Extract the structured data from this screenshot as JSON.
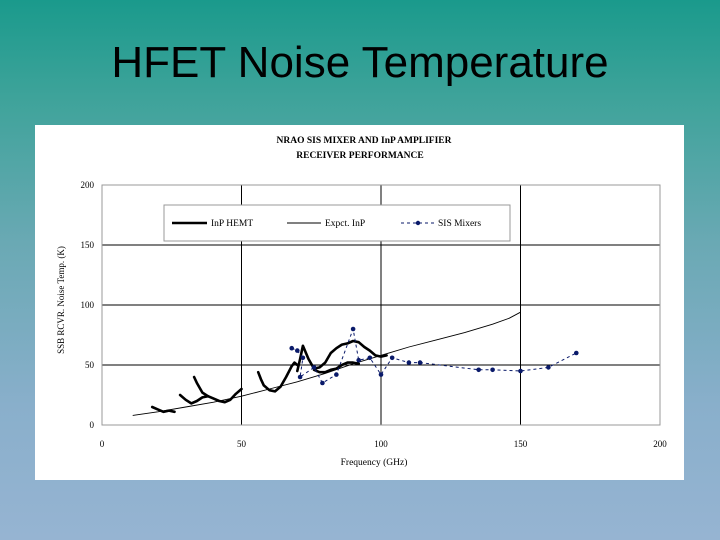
{
  "slide": {
    "title": "HFET Noise Temperature"
  },
  "chart_data": {
    "type": "line",
    "title": "NRAO SIS MIXER AND InP AMPLIFIER",
    "subtitle": "RECEIVER  PERFORMANCE",
    "xlabel": "Frequency (GHz)",
    "ylabel": "SSB RCVR. Noise Temp. (K)",
    "xlim": [
      0,
      200
    ],
    "ylim": [
      0,
      200
    ],
    "xticks": [
      "0",
      "50",
      "100",
      "150",
      "200"
    ],
    "yticks": [
      "0",
      "50",
      "100",
      "150",
      "200"
    ],
    "grid": true,
    "legend_position": "top",
    "series": [
      {
        "name": "InP HEMT",
        "style": "thick-solid",
        "color": "#000000",
        "segments": [
          [
            [
              18,
              15
            ],
            [
              20,
              13
            ],
            [
              22,
              11
            ],
            [
              24,
              12
            ],
            [
              26,
              11
            ]
          ],
          [
            [
              28,
              25
            ],
            [
              30,
              21
            ],
            [
              32,
              18
            ],
            [
              34,
              20
            ],
            [
              36,
              23
            ],
            [
              38,
              24
            ],
            [
              40,
              22
            ],
            [
              42,
              20
            ],
            [
              44,
              19
            ],
            [
              46,
              21
            ],
            [
              48,
              26
            ],
            [
              50,
              30
            ]
          ],
          [
            [
              33,
              40
            ],
            [
              34,
              35
            ],
            [
              36,
              27
            ],
            [
              38,
              24
            ]
          ],
          [
            [
              56,
              44
            ],
            [
              57,
              38
            ],
            [
              58,
              33
            ],
            [
              60,
              29
            ],
            [
              62,
              28
            ],
            [
              64,
              32
            ],
            [
              66,
              40
            ],
            [
              68,
              49
            ],
            [
              69,
              52
            ],
            [
              70,
              50
            ]
          ],
          [
            [
              70,
              45
            ],
            [
              71,
              55
            ],
            [
              72,
              66
            ],
            [
              74,
              55
            ],
            [
              76,
              47
            ],
            [
              78,
              48
            ],
            [
              80,
              52
            ],
            [
              82,
              60
            ],
            [
              84,
              64
            ],
            [
              86,
              67
            ],
            [
              88,
              68
            ],
            [
              90,
              70
            ],
            [
              92,
              69
            ],
            [
              94,
              65
            ],
            [
              96,
              62
            ],
            [
              98,
              58
            ],
            [
              100,
              57
            ],
            [
              102,
              58
            ]
          ],
          [
            [
              76,
              46
            ],
            [
              78,
              44
            ],
            [
              80,
              44
            ],
            [
              82,
              46
            ],
            [
              84,
              47
            ],
            [
              86,
              50
            ],
            [
              88,
              52
            ],
            [
              90,
              52
            ],
            [
              92,
              51
            ]
          ]
        ]
      },
      {
        "name": "Expct. InP",
        "style": "thin-solid",
        "color": "#000000",
        "points": [
          [
            11,
            8
          ],
          [
            20,
            11
          ],
          [
            30,
            15
          ],
          [
            40,
            19
          ],
          [
            50,
            24
          ],
          [
            60,
            30
          ],
          [
            70,
            36
          ],
          [
            80,
            43
          ],
          [
            90,
            51
          ],
          [
            100,
            58
          ],
          [
            110,
            65
          ],
          [
            120,
            71
          ],
          [
            130,
            77
          ],
          [
            140,
            84
          ],
          [
            146,
            89
          ],
          [
            150,
            94
          ]
        ]
      },
      {
        "name": "SIS Mixers",
        "style": "dashed-markers",
        "color": "#0a1a6a",
        "points": [
          [
            68,
            64
          ],
          [
            70,
            62
          ],
          [
            72,
            56
          ],
          [
            71,
            40
          ],
          [
            76,
            48
          ],
          [
            79,
            35
          ],
          [
            84,
            42
          ],
          [
            90,
            80
          ],
          [
            92,
            54
          ],
          [
            96,
            56
          ],
          [
            100,
            42
          ],
          [
            104,
            56
          ],
          [
            110,
            52
          ],
          [
            114,
            52
          ],
          [
            135,
            46
          ],
          [
            140,
            46
          ],
          [
            150,
            45
          ],
          [
            160,
            48
          ],
          [
            170,
            60
          ]
        ]
      }
    ]
  }
}
